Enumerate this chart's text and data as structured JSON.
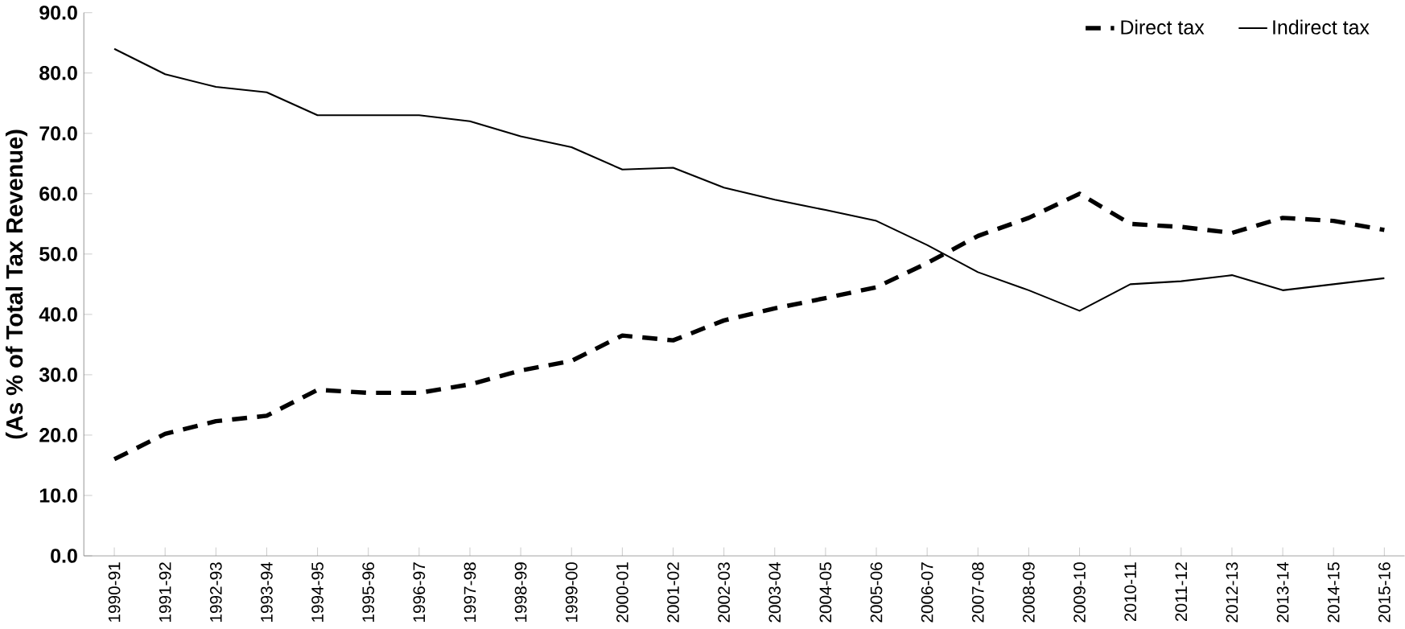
{
  "chart_data": {
    "type": "line",
    "ylabel": "(As % of Total Tax Revenue)",
    "categories": [
      "1990-91",
      "1991-92",
      "1992-93",
      "1993-94",
      "1994-95",
      "1995-96",
      "1996-97",
      "1997-98",
      "1998-99",
      "1999-00",
      "2000-01",
      "2001-02",
      "2002-03",
      "2003-04",
      "2004-05",
      "2005-06",
      "2006-07",
      "2007-08",
      "2008-09",
      "2009-10",
      "2010-11",
      "2011-12",
      "2012-13",
      "2013-14",
      "2014-15",
      "2015-16"
    ],
    "series": [
      {
        "name": "Direct tax",
        "color": "#000000",
        "line_style": "dashed",
        "values": [
          16,
          20.2,
          22.3,
          23.2,
          27.5,
          27,
          27,
          28.4,
          30.7,
          32.3,
          36.5,
          35.7,
          39,
          41,
          42.7,
          44.5,
          48.5,
          53,
          56,
          60,
          55,
          54.5,
          53.5,
          56,
          55.5,
          54
        ]
      },
      {
        "name": "Indirect tax",
        "color": "#000000",
        "line_style": "solid",
        "values": [
          84,
          79.8,
          77.7,
          76.8,
          73,
          73,
          73,
          72,
          69.5,
          67.7,
          64,
          64.3,
          61,
          59,
          57.3,
          55.5,
          51.5,
          47,
          44,
          40.6,
          45,
          45.5,
          46.5,
          44,
          45,
          46
        ]
      }
    ],
    "ylim": [
      0,
      90
    ],
    "yticks": [
      {
        "value": 0,
        "label": "0.0"
      },
      {
        "value": 10,
        "label": "10.0"
      },
      {
        "value": 20,
        "label": "20.0"
      },
      {
        "value": 30,
        "label": "30.0"
      },
      {
        "value": 40,
        "label": "40.0"
      },
      {
        "value": 50,
        "label": "50.0"
      },
      {
        "value": 60,
        "label": "60.0"
      },
      {
        "value": 70,
        "label": "70.0"
      },
      {
        "value": 80,
        "label": "80.0"
      },
      {
        "value": 90,
        "label": "90.0"
      }
    ],
    "legend": "top right",
    "grid": false,
    "marker": "none"
  }
}
